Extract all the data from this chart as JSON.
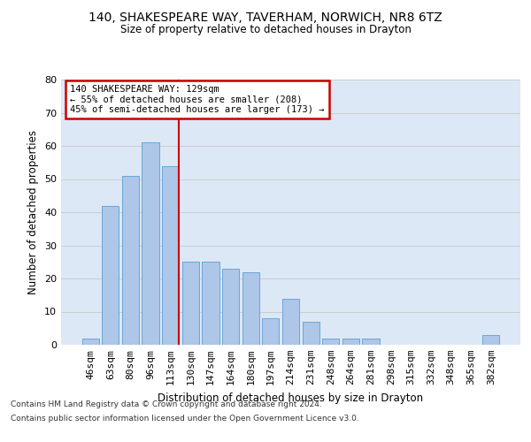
{
  "title1": "140, SHAKESPEARE WAY, TAVERHAM, NORWICH, NR8 6TZ",
  "title2": "Size of property relative to detached houses in Drayton",
  "xlabel": "Distribution of detached houses by size in Drayton",
  "ylabel": "Number of detached properties",
  "categories": [
    "46sqm",
    "63sqm",
    "80sqm",
    "96sqm",
    "113sqm",
    "130sqm",
    "147sqm",
    "164sqm",
    "180sqm",
    "197sqm",
    "214sqm",
    "231sqm",
    "248sqm",
    "264sqm",
    "281sqm",
    "298sqm",
    "315sqm",
    "332sqm",
    "348sqm",
    "365sqm",
    "382sqm"
  ],
  "values": [
    2,
    42,
    51,
    61,
    54,
    25,
    25,
    23,
    22,
    8,
    14,
    7,
    2,
    2,
    2,
    0,
    0,
    0,
    0,
    0,
    3
  ],
  "bar_color": "#aec6e8",
  "bar_edge_color": "#5a9fd4",
  "annotation_text": "140 SHAKESPEARE WAY: 129sqm\n← 55% of detached houses are smaller (208)\n45% of semi-detached houses are larger (173) →",
  "annotation_box_color": "#ffffff",
  "annotation_box_edge_color": "#cc0000",
  "vline_color": "#cc0000",
  "ylim": [
    0,
    80
  ],
  "yticks": [
    0,
    10,
    20,
    30,
    40,
    50,
    60,
    70,
    80
  ],
  "grid_color": "#cccccc",
  "bg_color": "#dce8f5",
  "footnote1": "Contains HM Land Registry data © Crown copyright and database right 2024.",
  "footnote2": "Contains public sector information licensed under the Open Government Licence v3.0."
}
